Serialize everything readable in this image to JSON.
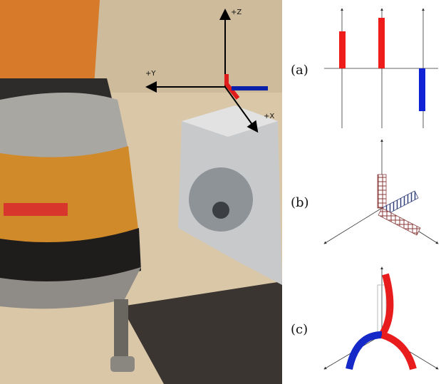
{
  "photo": {
    "axis_labels": [
      "+Z",
      "+Y",
      "+X"
    ]
  },
  "panels": [
    {
      "label": "(a)"
    },
    {
      "label": "(b)"
    },
    {
      "label": "(c)"
    }
  ]
}
